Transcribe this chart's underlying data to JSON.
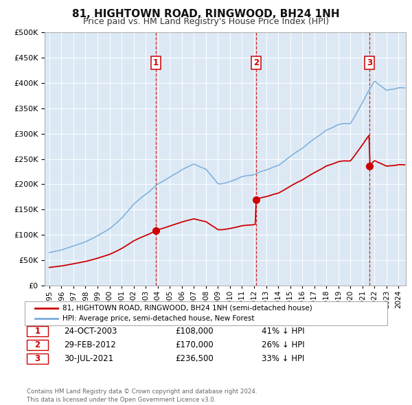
{
  "title": "81, HIGHTOWN ROAD, RINGWOOD, BH24 1NH",
  "subtitle": "Price paid vs. HM Land Registry's House Price Index (HPI)",
  "legend_line1": "81, HIGHTOWN ROAD, RINGWOOD, BH24 1NH (semi-detached house)",
  "legend_line2": "HPI: Average price, semi-detached house, New Forest",
  "price_color": "#cc0000",
  "hpi_color": "#7aadda",
  "background_color": "#dce9f5",
  "transactions": [
    {
      "num": 1,
      "date": "24-OCT-2003",
      "x_year": 2003.82,
      "price": 108000,
      "pct": "41% ↓ HPI"
    },
    {
      "num": 2,
      "date": "29-FEB-2012",
      "x_year": 2012.16,
      "price": 170000,
      "pct": "26% ↓ HPI"
    },
    {
      "num": 3,
      "date": "30-JUL-2021",
      "x_year": 2021.58,
      "price": 236500,
      "pct": "33% ↓ HPI"
    }
  ],
  "vline_color": "#cc0000",
  "footer": "Contains HM Land Registry data © Crown copyright and database right 2024.\nThis data is licensed under the Open Government Licence v3.0.",
  "ylim": [
    0,
    500000
  ],
  "xlim_start": 1994.6,
  "xlim_end": 2024.6
}
